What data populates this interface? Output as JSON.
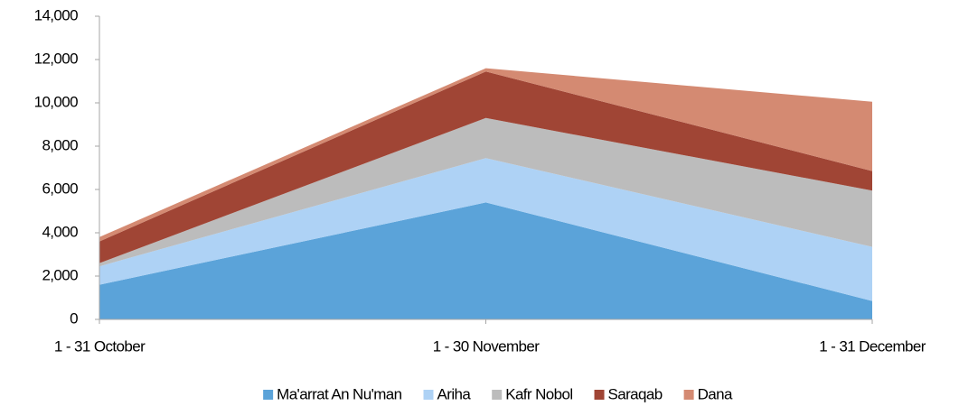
{
  "chart_data": {
    "type": "area",
    "categories": [
      "1 - 31 October",
      "1 - 30 November",
      "1 - 31 December"
    ],
    "series": [
      {
        "name": "Ma'arrat An Nu'man",
        "color": "#5ba3d9",
        "values": [
          1600,
          5400,
          850
        ]
      },
      {
        "name": "Ariha",
        "color": "#aed2f5",
        "values": [
          850,
          2050,
          2500
        ]
      },
      {
        "name": "Kafr Nobol",
        "color": "#bcbcbc",
        "values": [
          150,
          1850,
          2600
        ]
      },
      {
        "name": "Saraqab",
        "color": "#a04535",
        "values": [
          1000,
          2150,
          900
        ]
      },
      {
        "name": "Dana",
        "color": "#d48a72",
        "values": [
          200,
          150,
          3200
        ]
      }
    ],
    "ylim": [
      0,
      14000
    ],
    "yticks": [
      0,
      {
        "value": 2000,
        "label": "2,000"
      },
      {
        "value": 4000,
        "label": "4,000"
      },
      {
        "value": 6000,
        "label": "6,000"
      },
      {
        "value": 8000,
        "label": "8,000"
      },
      {
        "value": 10000,
        "label": "10,000"
      },
      {
        "value": 12000,
        "label": "12,000"
      },
      {
        "value": 14000,
        "label": "14,000"
      }
    ],
    "stacked": true,
    "legend": "bottom"
  }
}
